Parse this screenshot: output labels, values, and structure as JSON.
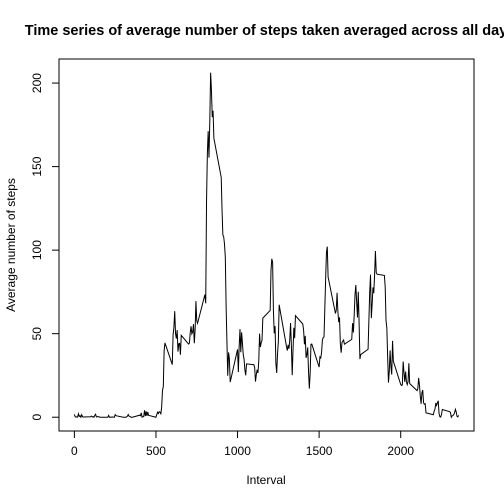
{
  "chart_data": {
    "type": "line",
    "title": "Time series of average number of steps taken averaged across all day",
    "x_label": "Interval",
    "y_label": "Average number of steps",
    "x": [
      0,
      5,
      10,
      15,
      20,
      25,
      30,
      35,
      40,
      45,
      50,
      55,
      100,
      105,
      110,
      115,
      120,
      125,
      130,
      135,
      140,
      145,
      150,
      155,
      200,
      205,
      210,
      215,
      220,
      225,
      230,
      235,
      240,
      245,
      250,
      255,
      300,
      305,
      310,
      315,
      320,
      325,
      330,
      335,
      340,
      345,
      350,
      355,
      400,
      405,
      410,
      415,
      420,
      425,
      430,
      435,
      440,
      445,
      450,
      455,
      500,
      505,
      510,
      515,
      520,
      525,
      530,
      535,
      540,
      545,
      550,
      555,
      600,
      605,
      610,
      615,
      620,
      625,
      630,
      635,
      640,
      645,
      650,
      655,
      700,
      705,
      710,
      715,
      720,
      725,
      730,
      735,
      740,
      745,
      750,
      755,
      800,
      805,
      810,
      815,
      820,
      825,
      830,
      835,
      840,
      845,
      850,
      855,
      900,
      905,
      910,
      915,
      920,
      925,
      930,
      935,
      940,
      945,
      950,
      955,
      1000,
      1005,
      1010,
      1015,
      1020,
      1025,
      1030,
      1035,
      1040,
      1045,
      1050,
      1055,
      1100,
      1105,
      1110,
      1115,
      1120,
      1125,
      1130,
      1135,
      1140,
      1145,
      1150,
      1155,
      1200,
      1205,
      1210,
      1215,
      1220,
      1225,
      1230,
      1235,
      1240,
      1245,
      1250,
      1255,
      1300,
      1305,
      1310,
      1315,
      1320,
      1325,
      1330,
      1335,
      1340,
      1345,
      1350,
      1355,
      1400,
      1405,
      1410,
      1415,
      1420,
      1425,
      1430,
      1435,
      1440,
      1445,
      1450,
      1455,
      1500,
      1505,
      1510,
      1515,
      1520,
      1525,
      1530,
      1535,
      1540,
      1545,
      1550,
      1555,
      1600,
      1605,
      1610,
      1615,
      1620,
      1625,
      1630,
      1635,
      1640,
      1645,
      1650,
      1655,
      1700,
      1705,
      1710,
      1715,
      1720,
      1725,
      1730,
      1735,
      1740,
      1745,
      1750,
      1755,
      1800,
      1805,
      1810,
      1815,
      1820,
      1825,
      1830,
      1835,
      1840,
      1845,
      1850,
      1855,
      1900,
      1905,
      1910,
      1915,
      1920,
      1925,
      1930,
      1935,
      1940,
      1945,
      1950,
      1955,
      2000,
      2005,
      2010,
      2015,
      2020,
      2025,
      2030,
      2035,
      2040,
      2045,
      2050,
      2055,
      2100,
      2105,
      2110,
      2115,
      2120,
      2125,
      2130,
      2135,
      2140,
      2145,
      2150,
      2155,
      2200,
      2205,
      2210,
      2215,
      2220,
      2225,
      2230,
      2235,
      2240,
      2245,
      2250,
      2255,
      2300,
      2305,
      2310,
      2315,
      2320,
      2325,
      2330,
      2335,
      2340,
      2345,
      2350,
      2355
    ],
    "series": [
      {
        "color": "#000000",
        "values": [
          1.7,
          0.3,
          0.1,
          0.2,
          0.1,
          2.1,
          0.5,
          0.9,
          0,
          1.5,
          0.3,
          0.1,
          0.3,
          0.7,
          0.2,
          0.3,
          0,
          1.1,
          1.8,
          0.2,
          0.2,
          0.4,
          0.3,
          0,
          0,
          0,
          1.1,
          0,
          0,
          0.1,
          0,
          0.2,
          0,
          0,
          1.5,
          0.9,
          0,
          0,
          0,
          0,
          0.2,
          0.6,
          1.6,
          0.6,
          0.5,
          0.1,
          0,
          0,
          1.2,
          0.9,
          2.6,
          0,
          0.3,
          0.4,
          4.1,
          0.7,
          3.5,
          0.8,
          3.1,
          1.1,
          0,
          1.6,
          3,
          2.2,
          3.3,
          3,
          2.1,
          6.1,
          16,
          18.3,
          39.5,
          44.5,
          31.5,
          49.3,
          53.8,
          63.5,
          50,
          47.1,
          52.2,
          39.3,
          44,
          44.2,
          37.4,
          49,
          43.8,
          44.4,
          50.5,
          54.5,
          49.9,
          51,
          55.7,
          44.3,
          52.3,
          69.5,
          57.8,
          56.2,
          73.4,
          68.2,
          129.4,
          157.5,
          171.2,
          155.4,
          177.3,
          206.2,
          195.9,
          179.6,
          183.4,
          167,
          143.5,
          124,
          109.1,
          108.1,
          103.7,
          95.96,
          66.2,
          45.2,
          24.8,
          38.8,
          35,
          21,
          40.6,
          27,
          42.4,
          52.7,
          38.9,
          50.8,
          44.3,
          37.4,
          34.7,
          28.3,
          25.1,
          31.9,
          31.4,
          29.7,
          21.3,
          25.5,
          28.4,
          26.5,
          33.4,
          50,
          42,
          44.6,
          46,
          59.3,
          63.9,
          87.7,
          94.8,
          92.8,
          63.4,
          50.2,
          54.5,
          32.4,
          26.5,
          37.7,
          45.1,
          67.3,
          42.3,
          39.9,
          43.3,
          40.98,
          46.2,
          56.4,
          42.8,
          25.1,
          39.97,
          53.5,
          47.3,
          60.8,
          55.8,
          51.96,
          43.6,
          48.7,
          35.5,
          37.5,
          41.8,
          27.5,
          17.1,
          26.1,
          43.6,
          43.8,
          30,
          36.1,
          35.5,
          38.8,
          46,
          47.75,
          48.1,
          65.3,
          82.9,
          98.7,
          102.1,
          83.96,
          62.1,
          64.1,
          74.5,
          63.2,
          56.9,
          59.8,
          43.9,
          38.6,
          44.7,
          45.5,
          46.2,
          43.7,
          46.6,
          56.3,
          50.7,
          61.2,
          73.4,
          79.1,
          68.9,
          59.7,
          75.1,
          56.5,
          34.8,
          37.5,
          40.7,
          58,
          74.7,
          85.3,
          59.3,
          67.8,
          77.7,
          74.2,
          85.3,
          99.5,
          86.6,
          85.6,
          84.9,
          77.8,
          58,
          53.4,
          36.3,
          20.7,
          27.4,
          40,
          30.2,
          25.5,
          45.7,
          33.5,
          19.6,
          19,
          19.3,
          33.3,
          26.8,
          21.2,
          27.3,
          21.3,
          19.5,
          21.3,
          32.3,
          20.2,
          15.9,
          17.2,
          23.5,
          19.2,
          12.5,
          8,
          14.7,
          16.3,
          8.7,
          7.8,
          8.1,
          2.6,
          1.5,
          3.7,
          4.8,
          8.5,
          7.1,
          8.7,
          9.8,
          2.2,
          0.3,
          0.1,
          1.6,
          4.6,
          3.3,
          2.8,
          0,
          0.8,
          0.96,
          1.6,
          2.6,
          4.7,
          3.3,
          0.6,
          0.2,
          1.1
        ]
      }
    ],
    "xlim": [
      -94.2,
      2449.2
    ],
    "ylim": [
      -8.25,
      214.4
    ],
    "xticks": [
      0,
      500,
      1000,
      1500,
      2000
    ],
    "yticks": [
      0,
      50,
      100,
      150,
      200
    ]
  }
}
